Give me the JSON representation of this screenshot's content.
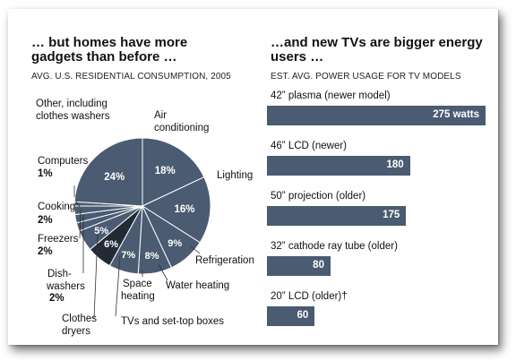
{
  "left": {
    "title_line1": "… but homes have more",
    "title_line2": "gadgets than before …",
    "subtitle": "AVG. U.S. RESIDENTIAL CONSUMPTION, 2005"
  },
  "right": {
    "title_line1": "…and new TVs are bigger energy",
    "title_line2": "users …",
    "subtitle": "EST. AVG. POWER USAGE FOR TV MODELS"
  },
  "colors": {
    "pie_fill": "#4a5b72",
    "tv_slice_fill": "#222a36",
    "bar_fill": "#4a5b72",
    "divider": "#ffffff",
    "leader": "#333333"
  },
  "chart_data": [
    {
      "type": "pie",
      "title": "AVG. U.S. RESIDENTIAL CONSUMPTION, 2005",
      "slices": [
        {
          "key": "ac",
          "name_lines": [
            "Air",
            "conditioning"
          ],
          "value": 18,
          "pct_label": "18%"
        },
        {
          "key": "lighting",
          "name_lines": [
            "Lighting"
          ],
          "value": 16,
          "pct_label": "16%"
        },
        {
          "key": "refrigeration",
          "name_lines": [
            "Refrigeration"
          ],
          "value": 9,
          "pct_label": "9%"
        },
        {
          "key": "water",
          "name_lines": [
            "Water heating"
          ],
          "value": 8,
          "pct_label": "8%"
        },
        {
          "key": "space",
          "name_lines": [
            "Space",
            "heating"
          ],
          "value": 7,
          "pct_label": "7%"
        },
        {
          "key": "tv",
          "name_lines": [
            "TVs and set-top boxes"
          ],
          "value": 6,
          "pct_label": "6%"
        },
        {
          "key": "dryers",
          "name_lines": [
            "Clothes",
            "dryers"
          ],
          "value": 5,
          "pct_label": "5%"
        },
        {
          "key": "dishwashers",
          "name_lines": [
            "Dish-",
            "washers"
          ],
          "value": 2,
          "pct_label": "2%"
        },
        {
          "key": "freezers",
          "name_lines": [
            "Freezers"
          ],
          "value": 2,
          "pct_label": "2%"
        },
        {
          "key": "cooking",
          "name_lines": [
            "Cooking"
          ],
          "value": 2,
          "pct_label": "2%"
        },
        {
          "key": "computers",
          "name_lines": [
            "Computers"
          ],
          "value": 1,
          "pct_label": "1%"
        },
        {
          "key": "other",
          "name_lines": [
            "Other, including",
            "clothes washers"
          ],
          "value": 24,
          "pct_label": "24%"
        }
      ]
    },
    {
      "type": "bar",
      "orientation": "horizontal",
      "title": "EST. AVG. POWER USAGE FOR TV MODELS",
      "categories": [
        "42” plasma (newer model)",
        "46” LCD (newer)",
        "50” projection (older)",
        "32” cathode ray tube (older)",
        "20” LCD (older)†"
      ],
      "values": [
        275,
        180,
        175,
        80,
        60
      ],
      "value_labels": [
        "275 watts",
        "180",
        "175",
        "80",
        "60"
      ],
      "xlim": [
        0,
        275
      ]
    }
  ]
}
